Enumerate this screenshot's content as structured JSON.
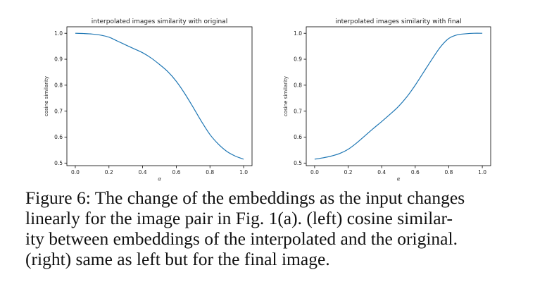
{
  "chart_data": [
    {
      "type": "line",
      "title": "interpolated images similarity with original",
      "xlabel": "α",
      "ylabel": "cosine similarity",
      "xlim": [
        -0.05,
        1.05
      ],
      "ylim": [
        0.49,
        1.025
      ],
      "xticks": [
        "0.0",
        "0.2",
        "0.4",
        "0.6",
        "0.8",
        "1.0"
      ],
      "yticks": [
        "0.5",
        "0.6",
        "0.7",
        "0.8",
        "0.9",
        "1.0"
      ],
      "grid": false,
      "color": "#1f77b4",
      "series": [
        {
          "x": [
            0.0,
            0.05,
            0.1,
            0.15,
            0.2,
            0.25,
            0.3,
            0.35,
            0.4,
            0.45,
            0.5,
            0.55,
            0.6,
            0.65,
            0.7,
            0.75,
            0.8,
            0.85,
            0.9,
            0.95,
            1.0
          ],
          "y": [
            1.0,
            0.999,
            0.997,
            0.993,
            0.985,
            0.97,
            0.955,
            0.94,
            0.925,
            0.905,
            0.88,
            0.852,
            0.815,
            0.768,
            0.715,
            0.66,
            0.61,
            0.573,
            0.545,
            0.527,
            0.515
          ]
        }
      ]
    },
    {
      "type": "line",
      "title": "interpolated images similarity with final",
      "xlabel": "α",
      "ylabel": "cosine similarity",
      "xlim": [
        -0.05,
        1.05
      ],
      "ylim": [
        0.49,
        1.025
      ],
      "xticks": [
        "0.0",
        "0.2",
        "0.4",
        "0.6",
        "0.8",
        "1.0"
      ],
      "yticks": [
        "0.5",
        "0.6",
        "0.7",
        "0.8",
        "0.9",
        "1.0"
      ],
      "grid": false,
      "color": "#1f77b4",
      "series": [
        {
          "x": [
            0.0,
            0.05,
            0.1,
            0.15,
            0.2,
            0.25,
            0.3,
            0.35,
            0.4,
            0.45,
            0.5,
            0.55,
            0.6,
            0.65,
            0.7,
            0.75,
            0.8,
            0.85,
            0.9,
            0.95,
            1.0
          ],
          "y": [
            0.515,
            0.52,
            0.527,
            0.537,
            0.553,
            0.577,
            0.605,
            0.633,
            0.66,
            0.688,
            0.718,
            0.755,
            0.8,
            0.85,
            0.9,
            0.947,
            0.98,
            0.994,
            0.998,
            1.0,
            1.0
          ]
        }
      ]
    }
  ],
  "caption": {
    "line1": "Figure 6: The change of the embeddings as the input changes",
    "line2": "linearly for the image pair in Fig. 1(a). (left) cosine similar-",
    "line3": "ity between embeddings of the interpolated and the original.",
    "line4": "(right) same as left but for the final image."
  }
}
